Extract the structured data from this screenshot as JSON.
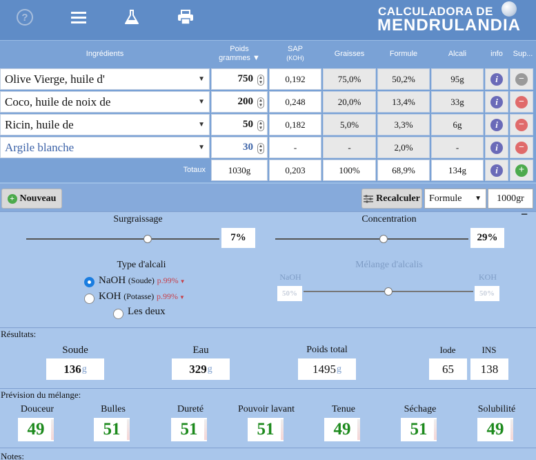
{
  "header": {
    "logo_line1": "CALCULADORA DE",
    "logo_line2": "MENDRULANDIA"
  },
  "table": {
    "headers": {
      "ingredients": "Ingrédients",
      "weight_line1": "Poids",
      "weight_line2": "grammes",
      "sap_line1": "SAP",
      "sap_line2": "(KOH)",
      "fat": "Graisses",
      "formula": "Formule",
      "alkali": "Alcali",
      "info": "info",
      "delete": "Sup..."
    },
    "rows": [
      {
        "ingredient": "Olive Vierge, huile d'",
        "weight": "750",
        "sap": "0,192",
        "fat": "75,0%",
        "formula": "50,2%",
        "alkali": "95g",
        "delete_disabled": true
      },
      {
        "ingredient": "Coco, huile de noix de",
        "weight": "200",
        "sap": "0,248",
        "fat": "20,0%",
        "formula": "13,4%",
        "alkali": "33g",
        "delete_disabled": false
      },
      {
        "ingredient": "Ricin, huile de",
        "weight": "50",
        "sap": "0,182",
        "fat": "5,0%",
        "formula": "3,3%",
        "alkali": "6g",
        "delete_disabled": false
      },
      {
        "ingredient": "Argile blanche",
        "weight": "30",
        "sap": "-",
        "fat": "-",
        "formula": "2,0%",
        "alkali": "-",
        "delete_disabled": false,
        "additive": true
      }
    ],
    "totals": {
      "label": "Totaux",
      "weight": "1030g",
      "sap": "0,203",
      "fat": "100%",
      "formula": "68,9%",
      "alkali": "134g"
    }
  },
  "toolbar": {
    "new_label": "Nouveau",
    "recalc_label": "Recalculer",
    "mode_select": "Formule",
    "total_input": "1000gr"
  },
  "settings": {
    "superfat_label": "Surgraissage",
    "superfat_value": "7%",
    "superfat_level": 0.63,
    "concentration_label": "Concentration",
    "concentration_value": "29%",
    "concentration_level": 0.56,
    "alkali_type_label": "Type d'alcali",
    "naoh_label": "NaOH",
    "naoh_sub": "(Soude)",
    "naoh_purity": "p.99%",
    "koh_label": "KOH",
    "koh_sub": "(Potasse)",
    "koh_purity": "p.99%",
    "both_label": "Les deux",
    "selected": "NaOH",
    "mix_label": "Mélange d'alcalis",
    "mix_naoh": "NaOH",
    "mix_koh": "KOH",
    "mix_naoh_value": "50%",
    "mix_koh_value": "50%",
    "mix_level": 0.5
  },
  "results": {
    "title": "Résultats:",
    "soda_label": "Soude",
    "soda_value": "136",
    "water_label": "Eau",
    "water_value": "329",
    "total_label": "Poids total",
    "total_value": "1495",
    "unit": "g",
    "iodine_label": "Iode",
    "iodine_value": "65",
    "ins_label": "INS",
    "ins_value": "138"
  },
  "forecast": {
    "title": "Prévision du mélange:",
    "items": [
      {
        "label": "Douceur",
        "value": "49"
      },
      {
        "label": "Bulles",
        "value": "51"
      },
      {
        "label": "Dureté",
        "value": "51"
      },
      {
        "label": "Pouvoir lavant",
        "value": "51"
      },
      {
        "label": "Tenue",
        "value": "49"
      },
      {
        "label": "Séchage",
        "value": "51"
      },
      {
        "label": "Solubilité",
        "value": "49"
      }
    ]
  },
  "notes": {
    "title": "Notes:"
  },
  "colors": {
    "accent_blue": "#5f8cc7",
    "info_purple": "#6a6ab8",
    "delete_red": "#e06a6a",
    "add_green": "#4caa4c",
    "value_green": "#1d8a1d"
  }
}
